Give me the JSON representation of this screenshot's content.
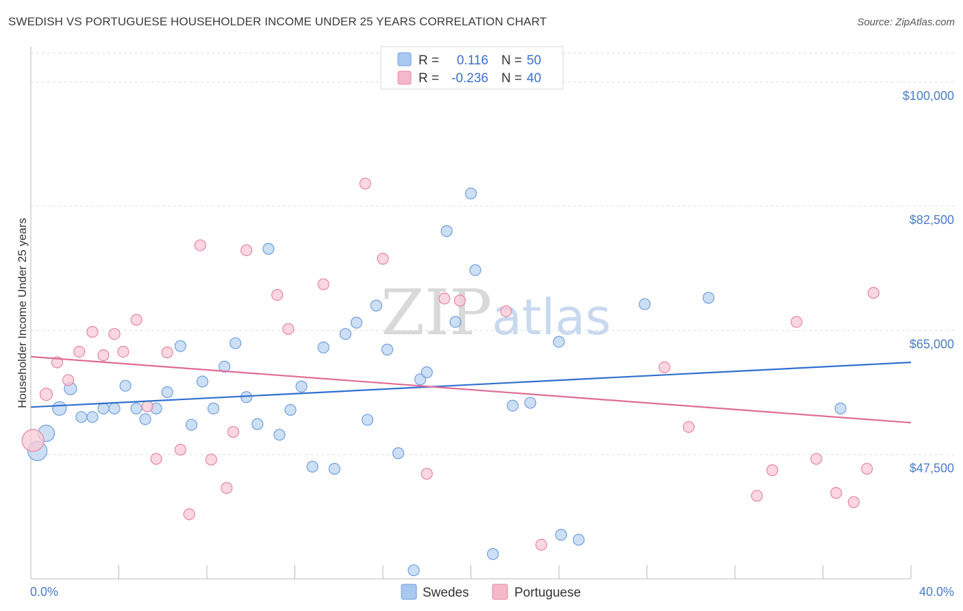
{
  "header": {
    "title": "SWEDISH VS PORTUGUESE HOUSEHOLDER INCOME UNDER 25 YEARS CORRELATION CHART",
    "source": "Source: ZipAtlas.com"
  },
  "watermark": {
    "zip": "ZIP",
    "atlas": "atlas"
  },
  "legend": {
    "rows": [
      {
        "r_label": "R =",
        "r_value": "0.116",
        "n_label": "N =",
        "n_value": "50",
        "color": "#a9c8f0"
      },
      {
        "r_label": "R =",
        "r_value": "-0.236",
        "n_label": "N =",
        "n_value": "40",
        "color": "#f5b8cb"
      }
    ]
  },
  "bottom_legend": [
    {
      "label": "Swedes",
      "color": "#a9c8f0"
    },
    {
      "label": "Portuguese",
      "color": "#f5b8cb"
    }
  ],
  "colors": {
    "swedes_fill": "#bcd4f2",
    "swedes_stroke": "#6d9ee0",
    "swedes_line": "#2f6fcf",
    "portuguese_fill": "#f8c9d7",
    "portuguese_stroke": "#e8849f",
    "portuguese_line": "#e06b93",
    "axis_text": "#4a7cc9",
    "grid": "#dddddd"
  },
  "chart_data": {
    "type": "scatter",
    "title": "SWEDISH VS PORTUGUESE HOUSEHOLDER INCOME UNDER 25 YEARS CORRELATION CHART",
    "xlabel": "",
    "ylabel": "Householder Income Under 25 years",
    "xlim": [
      0,
      40
    ],
    "ylim": [
      30000,
      105000
    ],
    "x_tick_labels": [
      "0.0%",
      "40.0%"
    ],
    "y_ticks": [
      47500,
      65000,
      82500,
      100000
    ],
    "y_tick_labels": [
      "$47,500",
      "$65,000",
      "$82,500",
      "$100,000"
    ],
    "grid": true,
    "legend_position": "top-center",
    "series": [
      {
        "name": "Swedes",
        "trend": {
          "x": [
            0,
            40
          ],
          "y": [
            54200,
            60500
          ]
        },
        "points": [
          {
            "x": 0.3,
            "y": 48000,
            "s": 14
          },
          {
            "x": 0.7,
            "y": 50500,
            "s": 12
          },
          {
            "x": 1.3,
            "y": 54000,
            "s": 10
          },
          {
            "x": 1.8,
            "y": 56800,
            "s": 9
          },
          {
            "x": 2.3,
            "y": 52800,
            "s": 8
          },
          {
            "x": 2.8,
            "y": 52800,
            "s": 8
          },
          {
            "x": 3.3,
            "y": 54000,
            "s": 8
          },
          {
            "x": 3.8,
            "y": 54000,
            "s": 8
          },
          {
            "x": 4.3,
            "y": 57200,
            "s": 8
          },
          {
            "x": 4.8,
            "y": 54000,
            "s": 8
          },
          {
            "x": 5.2,
            "y": 52500,
            "s": 8
          },
          {
            "x": 5.7,
            "y": 54000,
            "s": 8
          },
          {
            "x": 6.2,
            "y": 56300,
            "s": 8
          },
          {
            "x": 6.8,
            "y": 62800,
            "s": 8
          },
          {
            "x": 7.3,
            "y": 51700,
            "s": 8
          },
          {
            "x": 7.8,
            "y": 57800,
            "s": 8
          },
          {
            "x": 8.3,
            "y": 54000,
            "s": 8
          },
          {
            "x": 8.8,
            "y": 59900,
            "s": 8
          },
          {
            "x": 9.3,
            "y": 63200,
            "s": 8
          },
          {
            "x": 9.8,
            "y": 55600,
            "s": 8
          },
          {
            "x": 10.3,
            "y": 51800,
            "s": 8
          },
          {
            "x": 10.8,
            "y": 76500,
            "s": 8
          },
          {
            "x": 11.3,
            "y": 50300,
            "s": 8
          },
          {
            "x": 11.8,
            "y": 53800,
            "s": 8
          },
          {
            "x": 12.3,
            "y": 57100,
            "s": 8
          },
          {
            "x": 12.8,
            "y": 45800,
            "s": 8
          },
          {
            "x": 13.3,
            "y": 62600,
            "s": 8
          },
          {
            "x": 13.8,
            "y": 45500,
            "s": 8
          },
          {
            "x": 14.3,
            "y": 64500,
            "s": 8
          },
          {
            "x": 14.8,
            "y": 66100,
            "s": 8
          },
          {
            "x": 15.3,
            "y": 52400,
            "s": 8
          },
          {
            "x": 15.7,
            "y": 68500,
            "s": 8
          },
          {
            "x": 16.2,
            "y": 62300,
            "s": 8
          },
          {
            "x": 16.7,
            "y": 47700,
            "s": 8
          },
          {
            "x": 17.4,
            "y": 31200,
            "s": 8
          },
          {
            "x": 17.7,
            "y": 58100,
            "s": 8
          },
          {
            "x": 18.0,
            "y": 59100,
            "s": 8
          },
          {
            "x": 18.9,
            "y": 79000,
            "s": 8
          },
          {
            "x": 19.3,
            "y": 66200,
            "s": 8
          },
          {
            "x": 20.0,
            "y": 84300,
            "s": 8
          },
          {
            "x": 20.2,
            "y": 73500,
            "s": 8
          },
          {
            "x": 21.0,
            "y": 33500,
            "s": 8
          },
          {
            "x": 21.9,
            "y": 54400,
            "s": 8
          },
          {
            "x": 22.7,
            "y": 54800,
            "s": 8
          },
          {
            "x": 24.0,
            "y": 63400,
            "s": 8
          },
          {
            "x": 24.1,
            "y": 36200,
            "s": 8
          },
          {
            "x": 24.9,
            "y": 35500,
            "s": 8
          },
          {
            "x": 27.9,
            "y": 68700,
            "s": 8
          },
          {
            "x": 30.8,
            "y": 69600,
            "s": 8
          },
          {
            "x": 36.8,
            "y": 54000,
            "s": 8
          }
        ]
      },
      {
        "name": "Portuguese",
        "trend": {
          "x": [
            0,
            40
          ],
          "y": [
            61300,
            52000
          ]
        },
        "points": [
          {
            "x": 0.1,
            "y": 49500,
            "s": 16
          },
          {
            "x": 0.7,
            "y": 56000,
            "s": 9
          },
          {
            "x": 1.2,
            "y": 60500,
            "s": 8
          },
          {
            "x": 1.7,
            "y": 58000,
            "s": 8
          },
          {
            "x": 2.2,
            "y": 62000,
            "s": 8
          },
          {
            "x": 2.8,
            "y": 64800,
            "s": 8
          },
          {
            "x": 3.3,
            "y": 61500,
            "s": 8
          },
          {
            "x": 3.8,
            "y": 64500,
            "s": 8
          },
          {
            "x": 4.2,
            "y": 62000,
            "s": 8
          },
          {
            "x": 4.8,
            "y": 66500,
            "s": 8
          },
          {
            "x": 5.3,
            "y": 54300,
            "s": 8
          },
          {
            "x": 5.7,
            "y": 46900,
            "s": 8
          },
          {
            "x": 6.2,
            "y": 61900,
            "s": 8
          },
          {
            "x": 6.8,
            "y": 48200,
            "s": 8
          },
          {
            "x": 7.2,
            "y": 39100,
            "s": 8
          },
          {
            "x": 7.7,
            "y": 77000,
            "s": 8
          },
          {
            "x": 8.2,
            "y": 46800,
            "s": 8
          },
          {
            "x": 8.9,
            "y": 42800,
            "s": 8
          },
          {
            "x": 9.2,
            "y": 50700,
            "s": 8
          },
          {
            "x": 9.8,
            "y": 76300,
            "s": 8
          },
          {
            "x": 11.2,
            "y": 70000,
            "s": 8
          },
          {
            "x": 11.7,
            "y": 65200,
            "s": 8
          },
          {
            "x": 13.3,
            "y": 71500,
            "s": 8
          },
          {
            "x": 15.2,
            "y": 85700,
            "s": 8
          },
          {
            "x": 16.0,
            "y": 75100,
            "s": 8
          },
          {
            "x": 18.0,
            "y": 44800,
            "s": 8
          },
          {
            "x": 18.8,
            "y": 69500,
            "s": 8
          },
          {
            "x": 19.5,
            "y": 69200,
            "s": 8
          },
          {
            "x": 21.6,
            "y": 67700,
            "s": 8
          },
          {
            "x": 23.2,
            "y": 34800,
            "s": 8
          },
          {
            "x": 28.8,
            "y": 59800,
            "s": 8
          },
          {
            "x": 29.9,
            "y": 51400,
            "s": 8
          },
          {
            "x": 33.0,
            "y": 41700,
            "s": 8
          },
          {
            "x": 33.7,
            "y": 45300,
            "s": 8
          },
          {
            "x": 34.8,
            "y": 66200,
            "s": 8
          },
          {
            "x": 35.7,
            "y": 46900,
            "s": 8
          },
          {
            "x": 36.6,
            "y": 42100,
            "s": 8
          },
          {
            "x": 37.4,
            "y": 40800,
            "s": 8
          },
          {
            "x": 38.0,
            "y": 45500,
            "s": 8
          },
          {
            "x": 38.3,
            "y": 70300,
            "s": 8
          }
        ]
      }
    ]
  }
}
